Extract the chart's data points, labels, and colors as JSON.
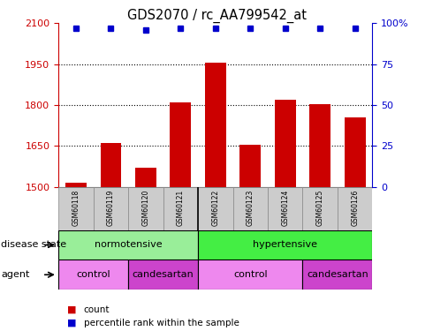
{
  "title": "GDS2070 / rc_AA799542_at",
  "samples": [
    "GSM60118",
    "GSM60119",
    "GSM60120",
    "GSM60121",
    "GSM60122",
    "GSM60123",
    "GSM60124",
    "GSM60125",
    "GSM60126"
  ],
  "counts": [
    1515,
    1660,
    1570,
    1810,
    1955,
    1655,
    1820,
    1805,
    1755
  ],
  "percentile_ranks": [
    97,
    97,
    96,
    97,
    97,
    97,
    97,
    97,
    97
  ],
  "bar_color": "#cc0000",
  "dot_color": "#0000cc",
  "ylim_left": [
    1500,
    2100
  ],
  "ylim_right": [
    0,
    100
  ],
  "yticks_left": [
    1500,
    1650,
    1800,
    1950,
    2100
  ],
  "yticks_right": [
    0,
    25,
    50,
    75,
    100
  ],
  "disease_state_groups": [
    {
      "label": "normotensive",
      "start": 0,
      "end": 3,
      "color": "#99ee99"
    },
    {
      "label": "hypertensive",
      "start": 4,
      "end": 8,
      "color": "#44ee44"
    }
  ],
  "agent_groups": [
    {
      "label": "control",
      "start": 0,
      "end": 1,
      "color": "#ee88ee"
    },
    {
      "label": "candesartan",
      "start": 2,
      "end": 3,
      "color": "#cc44cc"
    },
    {
      "label": "control",
      "start": 4,
      "end": 6,
      "color": "#ee88ee"
    },
    {
      "label": "candesartan",
      "start": 7,
      "end": 8,
      "color": "#cc44cc"
    }
  ],
  "legend_count_label": "count",
  "legend_pct_label": "percentile rank within the sample",
  "disease_state_label": "disease state",
  "agent_label": "agent",
  "axis_color_left": "#cc0000",
  "axis_color_right": "#0000cc",
  "background_color": "#ffffff",
  "sample_box_color": "#cccccc",
  "normotensive_color": "#aaffaa",
  "hypertensive_color": "#55ee55",
  "control_color": "#ee99ee",
  "candesartan_color": "#cc55cc"
}
